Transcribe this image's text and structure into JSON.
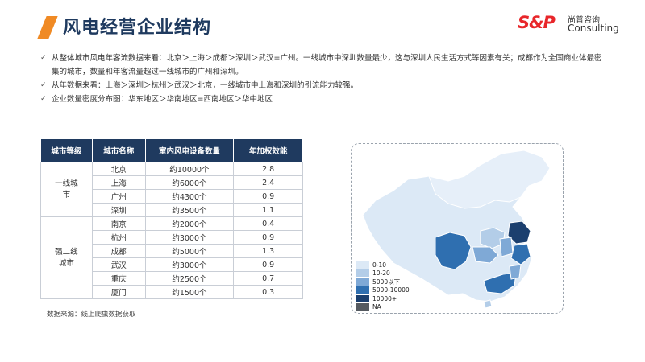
{
  "header": {
    "title": "风电经营企业结构"
  },
  "logo": {
    "mark": "S&P",
    "cn": "尚普咨询",
    "en": "Consulting"
  },
  "bullets": [
    "从整体城市风电年客流数据来看：北京＞上海＞成都＞深圳＞武汉=广州。一线城市中深圳数量最少，这与深圳人民生活方式等因素有关；成都作为全国商业体最密集的城市，数量和年客流量超过一线城市的广州和深圳。",
    "从年数据来看：上海＞深圳＞杭州＞武汉＞北京，一线城市中上海和深圳的引流能力较强。",
    "企业数量密度分布图：华东地区＞华南地区=西南地区＞华中地区"
  ],
  "table": {
    "headers": [
      "城市等级",
      "城市名称",
      "室内风电设备数量",
      "年加权效能"
    ],
    "groups": [
      {
        "tier": "一线城市",
        "rows": [
          {
            "city": "北京",
            "count": "约10000个",
            "eff": "2.8"
          },
          {
            "city": "上海",
            "count": "约6000个",
            "eff": "2.4"
          },
          {
            "city": "广州",
            "count": "约4300个",
            "eff": "0.9"
          },
          {
            "city": "深圳",
            "count": "约3500个",
            "eff": "1.1"
          }
        ]
      },
      {
        "tier": "强二线城市",
        "rows": [
          {
            "city": "南京",
            "count": "约2000个",
            "eff": "0.4"
          },
          {
            "city": "杭州",
            "count": "约3000个",
            "eff": "0.9"
          },
          {
            "city": "成都",
            "count": "约5000个",
            "eff": "1.3"
          },
          {
            "city": "武汉",
            "count": "约3000个",
            "eff": "0.9"
          },
          {
            "city": "重庆",
            "count": "约2500个",
            "eff": "0.7"
          },
          {
            "city": "厦门",
            "count": "约1500个",
            "eff": "0.3"
          }
        ]
      }
    ]
  },
  "source": "数据来源：线上爬虫数据获取",
  "map": {
    "legend": [
      {
        "label": "0-10",
        "color": "#dce9f6"
      },
      {
        "label": "10-20",
        "color": "#b3cde8"
      },
      {
        "label": "5000以下",
        "color": "#7fa9d6"
      },
      {
        "label": "5000-10000",
        "color": "#2f6fb0"
      },
      {
        "label": "10000+",
        "color": "#1b3f6e"
      },
      {
        "label": "NA",
        "color": "#555a60"
      }
    ]
  },
  "colors": {
    "accent": "#f08a24",
    "navy": "#1f3a5f",
    "brand_red": "#e8262a"
  }
}
